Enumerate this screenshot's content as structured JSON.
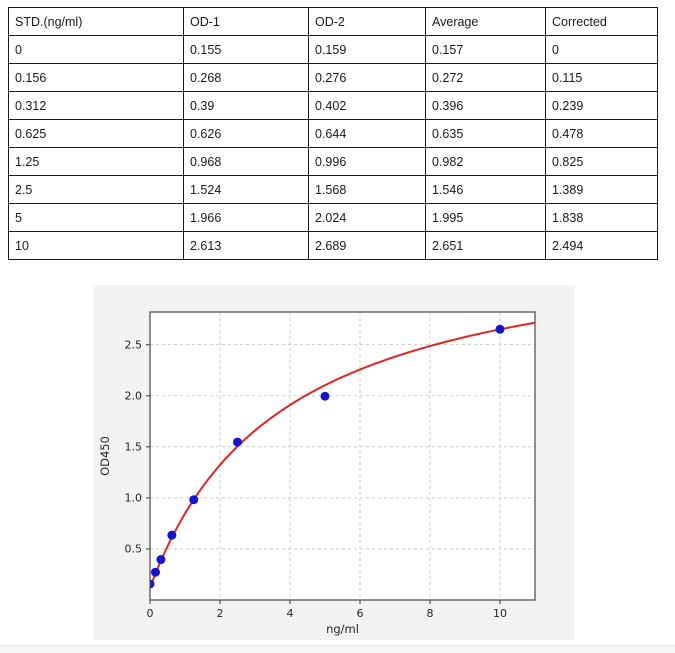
{
  "table": {
    "headers": [
      "STD.(ng/ml)",
      "OD-1",
      "OD-2",
      "Average",
      "Corrected"
    ],
    "rows": [
      [
        "0",
        "0.155",
        "0.159",
        "0.157",
        "0"
      ],
      [
        "0.156",
        "0.268",
        "0.276",
        "0.272",
        "0.115"
      ],
      [
        "0.312",
        "0.39",
        "0.402",
        "0.396",
        "0.239"
      ],
      [
        "0.625",
        "0.626",
        "0.644",
        "0.635",
        "0.478"
      ],
      [
        "1.25",
        "0.968",
        "0.996",
        "0.982",
        "0.825"
      ],
      [
        "2.5",
        "1.524",
        "1.568",
        "1.546",
        "1.389"
      ],
      [
        "5",
        "1.966",
        "2.024",
        "1.995",
        "1.838"
      ],
      [
        "10",
        "2.613",
        "2.689",
        "2.651",
        "2.494"
      ]
    ]
  },
  "chart_data": {
    "type": "scatter",
    "title": "",
    "xlabel": "ng/ml",
    "ylabel": "OD450",
    "x": [
      0,
      0.156,
      0.312,
      0.625,
      1.25,
      2.5,
      5,
      10
    ],
    "y": [
      0.157,
      0.272,
      0.396,
      0.635,
      0.982,
      1.546,
      1.995,
      2.651
    ],
    "xlim": [
      0,
      11
    ],
    "ylim": [
      0,
      2.82
    ],
    "xticks": [
      "0",
      "2",
      "4",
      "6",
      "8",
      "10"
    ],
    "xtick_values": [
      0,
      2,
      4,
      6,
      8,
      10
    ],
    "yticks": [
      "0.5",
      "1.0",
      "1.5",
      "2.0",
      "2.5"
    ],
    "ytick_values": [
      0.5,
      1.0,
      1.5,
      2.0,
      2.5
    ],
    "grid": true,
    "grid_style": "dashed",
    "legend": "none",
    "curve_fit": {
      "model": "y = c + a*x/(b+x)",
      "a": 3.494,
      "b": 3.811,
      "c": 0.12
    },
    "colors": {
      "point": "#1414cc",
      "curve": "#e02424",
      "figure_bg": "#f2f2f0",
      "plot_bg": "#ffffff",
      "grid": "#c9c9c9",
      "spine": "#555555",
      "text": "#262626"
    }
  }
}
